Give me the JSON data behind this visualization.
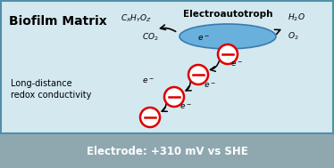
{
  "bg_color": "#d4e8f0",
  "bar_color": "#8fa8b0",
  "bar_text": "Electrode: +310 mV vs SHE",
  "bar_text_color": "#ffffff",
  "title_text": "Electroautotroph",
  "biofilm_text": "Biofilm Matrix",
  "long_dist_line1": "Long-distance",
  "long_dist_line2": "redox conductivity",
  "ellipse_color": "#6ab0dc",
  "ellipse_edge": "#3a7ab0",
  "red_circle_color": "#dd0000",
  "border_color": "#5090a8",
  "circles": [
    [
      0.565,
      0.615
    ],
    [
      0.495,
      0.5
    ],
    [
      0.435,
      0.375
    ],
    [
      0.36,
      0.255
    ]
  ]
}
